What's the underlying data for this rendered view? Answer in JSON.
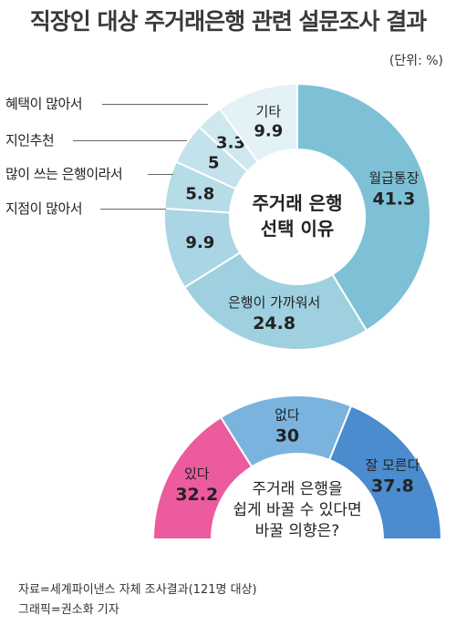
{
  "title": "직장인 대상 주거래은행 관련 설문조사 결과",
  "unit": "(단위: %)",
  "chart_data": [
    {
      "type": "pie",
      "center_label": [
        "주거래 은행",
        "선택 이유"
      ],
      "slices": [
        {
          "label": "월급통장",
          "value": 41.3,
          "color": "#7ec1d6"
        },
        {
          "label": "은행이 가까워서",
          "value": 24.8,
          "color": "#9ed0e0"
        },
        {
          "label": "지점이 많아서",
          "value": 9.9,
          "color": "#a9d5e4"
        },
        {
          "label": "많이 쓰는 은행이라서",
          "value": 5.8,
          "color": "#b6dce8"
        },
        {
          "label": "지인추천",
          "value": 5,
          "color": "#c3e2ec"
        },
        {
          "label": "혜택이 많아서",
          "value": 3.3,
          "color": "#cfe8f0"
        },
        {
          "label": "기타",
          "value": 9.9,
          "color": "#e2f2f6"
        }
      ]
    },
    {
      "type": "pie",
      "center_label": [
        "주거래 은행을",
        "쉽게 바꿀 수 있다면",
        "바꿀 의향은?"
      ],
      "slices": [
        {
          "label": "있다",
          "value": 32.2,
          "color": "#ec5b9e"
        },
        {
          "label": "없다",
          "value": 30,
          "color": "#7ab4de"
        },
        {
          "label": "잘 모른다",
          "value": 37.8,
          "color": "#4a8ccd"
        }
      ]
    }
  ],
  "source": "자료=세계파이낸스 자체 조사결과(121명 대상)",
  "credit": "그래픽=권소화 기자"
}
